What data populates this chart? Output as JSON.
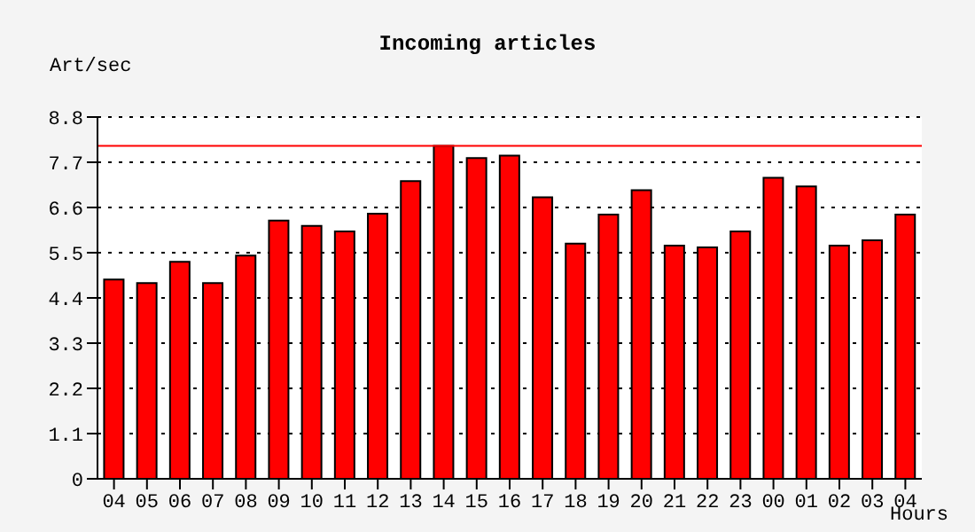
{
  "chart_data": {
    "type": "bar",
    "title": "Incoming articles",
    "ylabel": "Art/sec",
    "xlabel": "Hours",
    "categories": [
      "04",
      "05",
      "06",
      "07",
      "08",
      "09",
      "10",
      "11",
      "12",
      "13",
      "14",
      "15",
      "16",
      "17",
      "18",
      "19",
      "20",
      "21",
      "22",
      "23",
      "00",
      "01",
      "02",
      "03",
      "04"
    ],
    "values": [
      4.85,
      4.76,
      5.28,
      4.76,
      5.43,
      6.28,
      6.15,
      6.02,
      6.45,
      7.24,
      8.1,
      7.8,
      7.86,
      6.85,
      5.72,
      6.43,
      7.02,
      5.67,
      5.63,
      6.02,
      7.32,
      7.11,
      5.67,
      5.8,
      6.43
    ],
    "color": "#ff0000",
    "ylim": [
      0,
      8.8
    ],
    "yticks": [
      0,
      1.1,
      2.2,
      3.3,
      4.4,
      5.5,
      6.6,
      7.7,
      8.8
    ],
    "grid": "y",
    "ref_lines": [
      {
        "axis": "y",
        "value": 8.1,
        "color": "#ff0000"
      }
    ]
  }
}
